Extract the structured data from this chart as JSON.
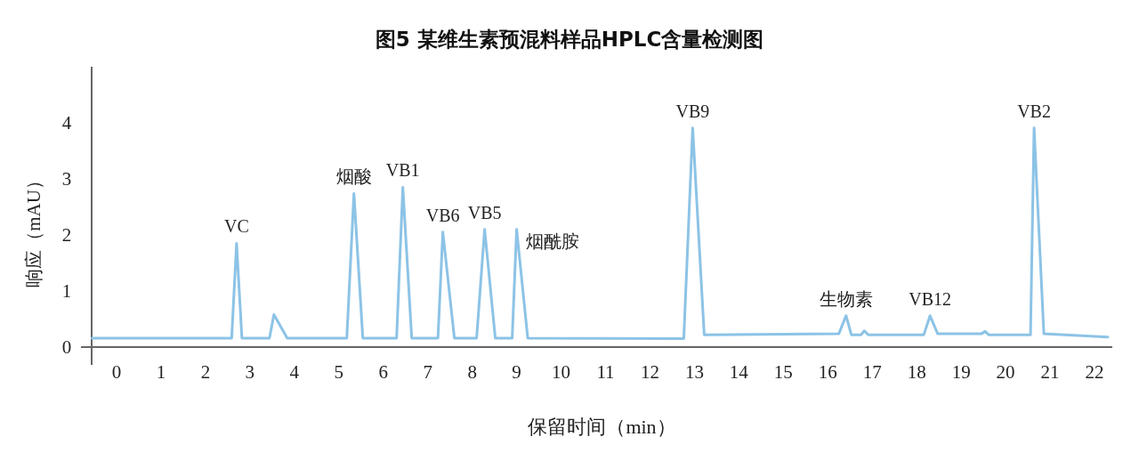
{
  "chart_data": {
    "type": "line",
    "title": "图5 某维生素预混料样品HPLC含量检测图",
    "xlabel": "保留时间（min）",
    "ylabel": "响应（mAU）",
    "xlim": [
      -0.56,
      22.4
    ],
    "ylim": [
      0,
      5
    ],
    "xticks": [
      0,
      1,
      2,
      3,
      4,
      5,
      6,
      7,
      8,
      9,
      10,
      11,
      12,
      13,
      14,
      15,
      16,
      17,
      18,
      19,
      20,
      21,
      22
    ],
    "yticks": [
      0,
      1,
      2,
      3,
      4
    ],
    "grid": false,
    "marker": "none",
    "line_style": "solid",
    "series": [
      {
        "color": "#8cc3e6",
        "x": [
          -0.55,
          2.59,
          2.7,
          2.82,
          3.44,
          3.54,
          3.84,
          5.18,
          5.34,
          5.54,
          6.3,
          6.44,
          6.64,
          7.23,
          7.34,
          7.6,
          8.1,
          8.28,
          8.52,
          8.9,
          9.0,
          9.25,
          12.76,
          12.96,
          13.22,
          16.25,
          16.41,
          16.53,
          16.75,
          16.82,
          16.91,
          18.16,
          18.3,
          18.47,
          19.46,
          19.54,
          19.62,
          20.56,
          20.64,
          20.86,
          22.3
        ],
        "values": [
          0.16,
          0.16,
          1.85,
          0.16,
          0.16,
          0.58,
          0.16,
          0.16,
          2.74,
          0.16,
          0.16,
          2.85,
          0.16,
          0.16,
          2.05,
          0.16,
          0.16,
          2.1,
          0.16,
          0.16,
          2.1,
          0.16,
          0.15,
          3.91,
          0.22,
          0.24,
          0.56,
          0.22,
          0.22,
          0.29,
          0.22,
          0.22,
          0.56,
          0.24,
          0.24,
          0.28,
          0.22,
          0.22,
          3.91,
          0.24,
          0.18
        ]
      }
    ],
    "annotations": [
      {
        "text": "VC",
        "x": 2.7,
        "y": 1.85
      },
      {
        "text": "烟酸",
        "x": 5.34,
        "y": 2.74
      },
      {
        "text": "VB1",
        "x": 6.44,
        "y": 2.85
      },
      {
        "text": "VB6",
        "x": 7.34,
        "y": 2.05
      },
      {
        "text": "VB5",
        "x": 8.28,
        "y": 2.1
      },
      {
        "text": "烟酰胺",
        "x": 9.0,
        "y": 2.1
      },
      {
        "text": "VB9",
        "x": 12.96,
        "y": 3.91
      },
      {
        "text": "生物素",
        "x": 16.41,
        "y": 0.56
      },
      {
        "text": "VB12",
        "x": 18.3,
        "y": 0.56
      },
      {
        "text": "VB2",
        "x": 20.64,
        "y": 3.91
      }
    ]
  }
}
